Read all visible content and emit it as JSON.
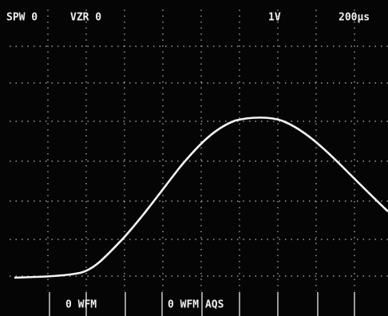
{
  "header": {
    "left": "SPW 0",
    "middle": "VZR 0",
    "scale": "1V",
    "timebase": "200µs"
  },
  "footer": {
    "left": "0 WFM",
    "right": "0 WFM AQS"
  }
}
